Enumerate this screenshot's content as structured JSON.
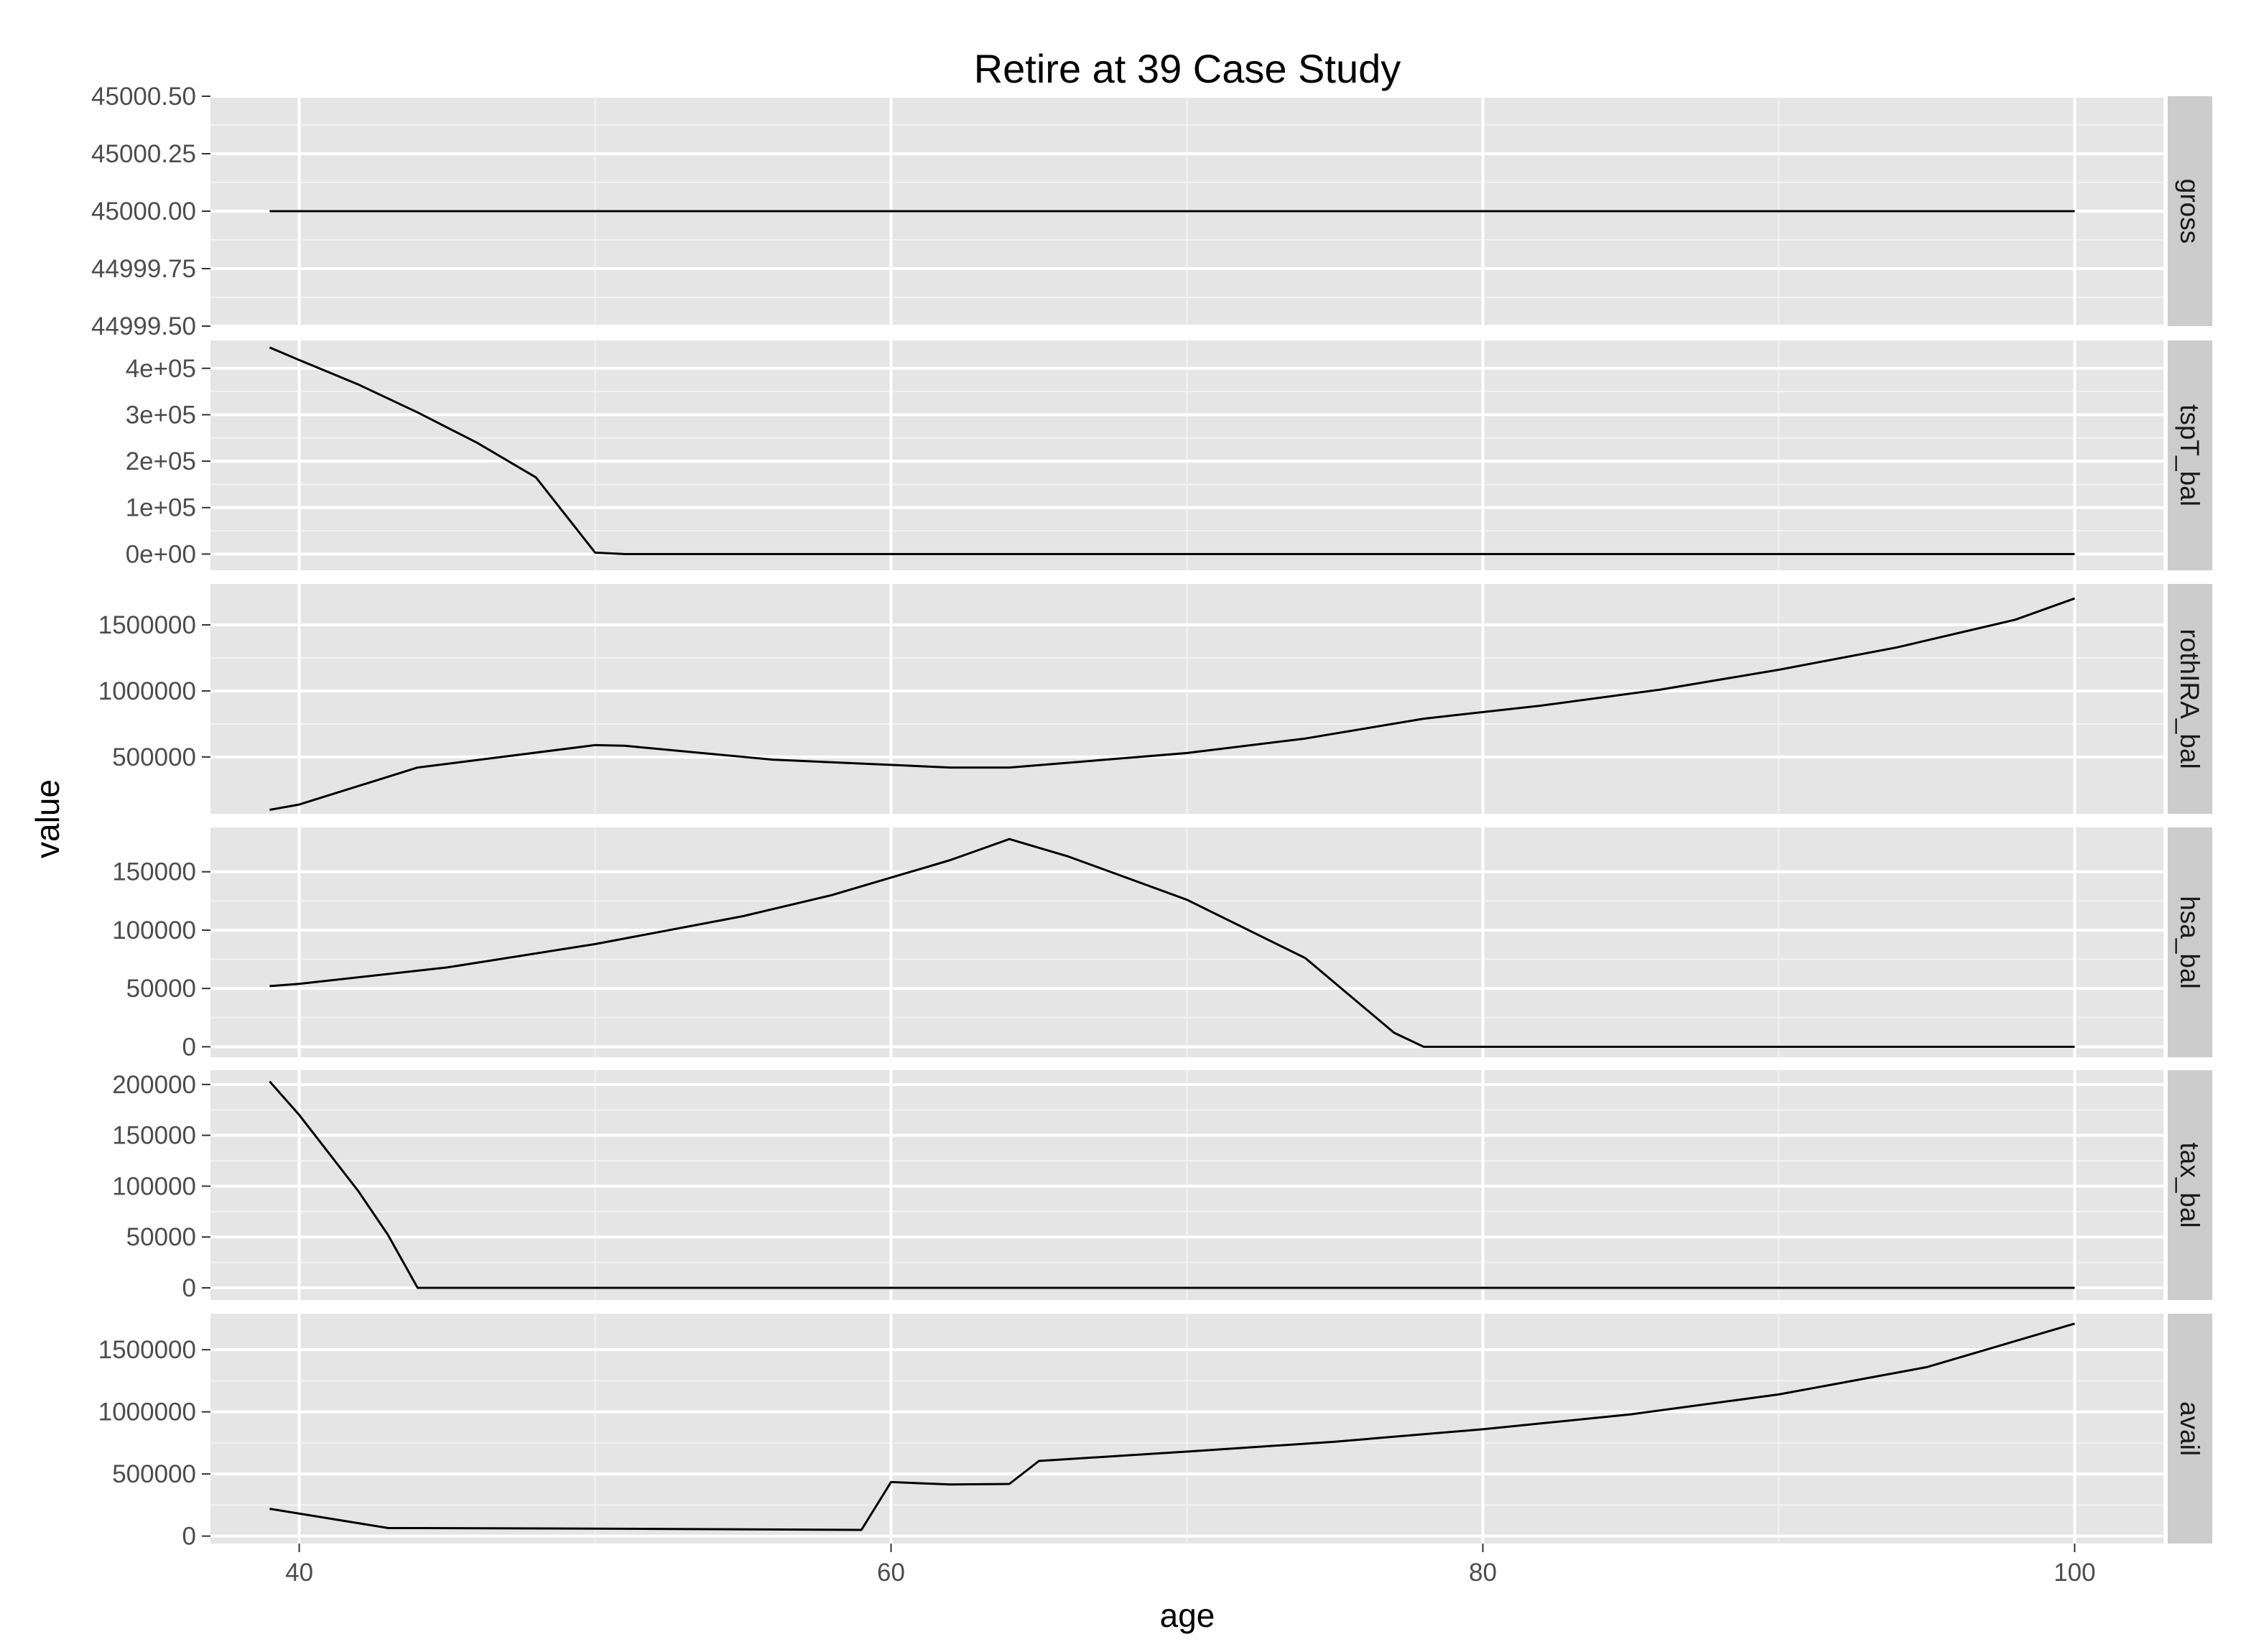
{
  "chart_data": {
    "type": "line",
    "title": "Retire at 39 Case Study",
    "xlabel": "age",
    "ylabel": "value",
    "xlim": [
      37,
      103
    ],
    "x_ticks": [
      40,
      60,
      80,
      100
    ],
    "x_tick_labels": [
      "40",
      "60",
      "80",
      "100"
    ],
    "grid": true,
    "colors": {
      "panel_bg": "#e5e5e5",
      "strip_bg": "#cccccc",
      "grid_major": "#ffffff",
      "grid_minor": "#f2f2f2",
      "line": "#000000",
      "tick_text": "#4d4d4d"
    },
    "facets": [
      {
        "name": "gross",
        "ylim": [
          44999.5,
          45000.5
        ],
        "y_ticks": [
          44999.5,
          44999.75,
          45000,
          45000.25,
          45000.5
        ],
        "y_tick_labels": [
          "44999.50",
          "44999.75",
          "45000.00",
          "45000.25",
          "45000.50"
        ],
        "points": [
          [
            39,
            45000
          ],
          [
            100,
            45000
          ]
        ]
      },
      {
        "name": "tspT_bal",
        "ylim": [
          -35000,
          460000
        ],
        "y_ticks": [
          0,
          100000,
          200000,
          300000,
          400000
        ],
        "y_tick_labels": [
          "0e+00",
          "1e+05",
          "2e+05",
          "3e+05",
          "4e+05"
        ],
        "points": [
          [
            39,
            445000
          ],
          [
            40,
            418000
          ],
          [
            42,
            365000
          ],
          [
            44,
            305000
          ],
          [
            46,
            240000
          ],
          [
            48,
            165000
          ],
          [
            50,
            3000
          ],
          [
            51,
            0
          ],
          [
            100,
            0
          ]
        ]
      },
      {
        "name": "rothIRA_bal",
        "ylim": [
          70000,
          1810000
        ],
        "y_ticks": [
          500000,
          1000000,
          1500000
        ],
        "y_tick_labels": [
          "500000",
          "1000000",
          "1500000"
        ],
        "points": [
          [
            39,
            100000
          ],
          [
            40,
            140000
          ],
          [
            44,
            420000
          ],
          [
            50,
            590000
          ],
          [
            51,
            585000
          ],
          [
            56,
            480000
          ],
          [
            62,
            420000
          ],
          [
            64,
            420000
          ],
          [
            70,
            530000
          ],
          [
            74,
            640000
          ],
          [
            78,
            790000
          ],
          [
            82,
            890000
          ],
          [
            86,
            1010000
          ],
          [
            90,
            1160000
          ],
          [
            94,
            1330000
          ],
          [
            98,
            1540000
          ],
          [
            100,
            1700000
          ]
        ]
      },
      {
        "name": "hsa_bal",
        "ylim": [
          -9000,
          188000
        ],
        "y_ticks": [
          0,
          50000,
          100000,
          150000
        ],
        "y_tick_labels": [
          "0",
          "50000",
          "100000",
          "150000"
        ],
        "points": [
          [
            39,
            52000
          ],
          [
            40,
            54000
          ],
          [
            45,
            68000
          ],
          [
            50,
            88000
          ],
          [
            55,
            112000
          ],
          [
            58,
            130000
          ],
          [
            62,
            160000
          ],
          [
            64,
            178000
          ],
          [
            66,
            163000
          ],
          [
            70,
            126000
          ],
          [
            74,
            76000
          ],
          [
            77,
            12000
          ],
          [
            78,
            0
          ],
          [
            100,
            0
          ]
        ]
      },
      {
        "name": "tax_bal",
        "ylim": [
          -12000,
          214000
        ],
        "y_ticks": [
          0,
          50000,
          100000,
          150000,
          200000
        ],
        "y_tick_labels": [
          "0",
          "50000",
          "100000",
          "150000",
          "200000"
        ],
        "points": [
          [
            39,
            203000
          ],
          [
            40,
            170000
          ],
          [
            42,
            95000
          ],
          [
            43,
            52000
          ],
          [
            44,
            0
          ],
          [
            100,
            0
          ]
        ]
      },
      {
        "name": "avail",
        "ylim": [
          -60000,
          1790000
        ],
        "y_ticks": [
          0,
          500000,
          1000000,
          1500000
        ],
        "y_tick_labels": [
          "0",
          "500000",
          "1000000",
          "1500000"
        ],
        "points": [
          [
            39,
            220000
          ],
          [
            43,
            65000
          ],
          [
            50,
            60000
          ],
          [
            59,
            50000
          ],
          [
            60,
            435000
          ],
          [
            62,
            415000
          ],
          [
            64,
            420000
          ],
          [
            65,
            605000
          ],
          [
            70,
            680000
          ],
          [
            75,
            760000
          ],
          [
            80,
            860000
          ],
          [
            85,
            980000
          ],
          [
            90,
            1140000
          ],
          [
            95,
            1360000
          ],
          [
            100,
            1710000
          ]
        ]
      }
    ]
  }
}
